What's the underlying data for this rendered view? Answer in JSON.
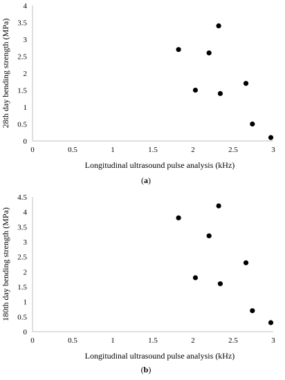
{
  "chart_data": [
    {
      "type": "scatter",
      "panel_label": "(a)",
      "panel_letter": "a",
      "xlabel": "Longitudinal ultrasound pulse analysis (kHz)",
      "ylabel": "28th day bending strength (MPa)",
      "xlim": [
        0,
        3
      ],
      "ylim": [
        0,
        4
      ],
      "xticks": [
        "0",
        "0.5",
        "1",
        "1.5",
        "2",
        "2.5",
        "3"
      ],
      "xtick_values": [
        0,
        0.5,
        1,
        1.5,
        2,
        2.5,
        3
      ],
      "yticks": [
        "0",
        "0.5",
        "1",
        "1.5",
        "2",
        "2.5",
        "3",
        "3.5",
        "4"
      ],
      "ytick_values": [
        0,
        0.5,
        1,
        1.5,
        2,
        2.5,
        3,
        3.5,
        4
      ],
      "grid": false,
      "marker_color": "#000000",
      "points": [
        {
          "x": 1.82,
          "y": 2.7
        },
        {
          "x": 2.03,
          "y": 1.5
        },
        {
          "x": 2.2,
          "y": 2.6
        },
        {
          "x": 2.32,
          "y": 3.4
        },
        {
          "x": 2.34,
          "y": 1.4
        },
        {
          "x": 2.66,
          "y": 1.7
        },
        {
          "x": 2.74,
          "y": 0.5
        },
        {
          "x": 2.97,
          "y": 0.1
        }
      ]
    },
    {
      "type": "scatter",
      "panel_label": "(b)",
      "panel_letter": "b",
      "xlabel": "Longitudinal ultrasound pulse analysis (kHz)",
      "ylabel": "180th day bending strength (MPa)",
      "xlim": [
        0,
        3
      ],
      "ylim": [
        0,
        4.5
      ],
      "xticks": [
        "0",
        "0.5",
        "1",
        "1.5",
        "2",
        "2.5",
        "3"
      ],
      "xtick_values": [
        0,
        0.5,
        1,
        1.5,
        2,
        2.5,
        3
      ],
      "yticks": [
        "0",
        "0.5",
        "1",
        "1.5",
        "2",
        "2.5",
        "3",
        "3.5",
        "4",
        "4.5"
      ],
      "ytick_values": [
        0,
        0.5,
        1,
        1.5,
        2,
        2.5,
        3,
        3.5,
        4,
        4.5
      ],
      "grid": false,
      "marker_color": "#000000",
      "points": [
        {
          "x": 1.82,
          "y": 3.8
        },
        {
          "x": 2.03,
          "y": 1.8
        },
        {
          "x": 2.2,
          "y": 3.2
        },
        {
          "x": 2.32,
          "y": 4.2
        },
        {
          "x": 2.34,
          "y": 1.6
        },
        {
          "x": 2.66,
          "y": 2.3
        },
        {
          "x": 2.74,
          "y": 0.7
        },
        {
          "x": 2.97,
          "y": 0.3
        }
      ]
    }
  ]
}
